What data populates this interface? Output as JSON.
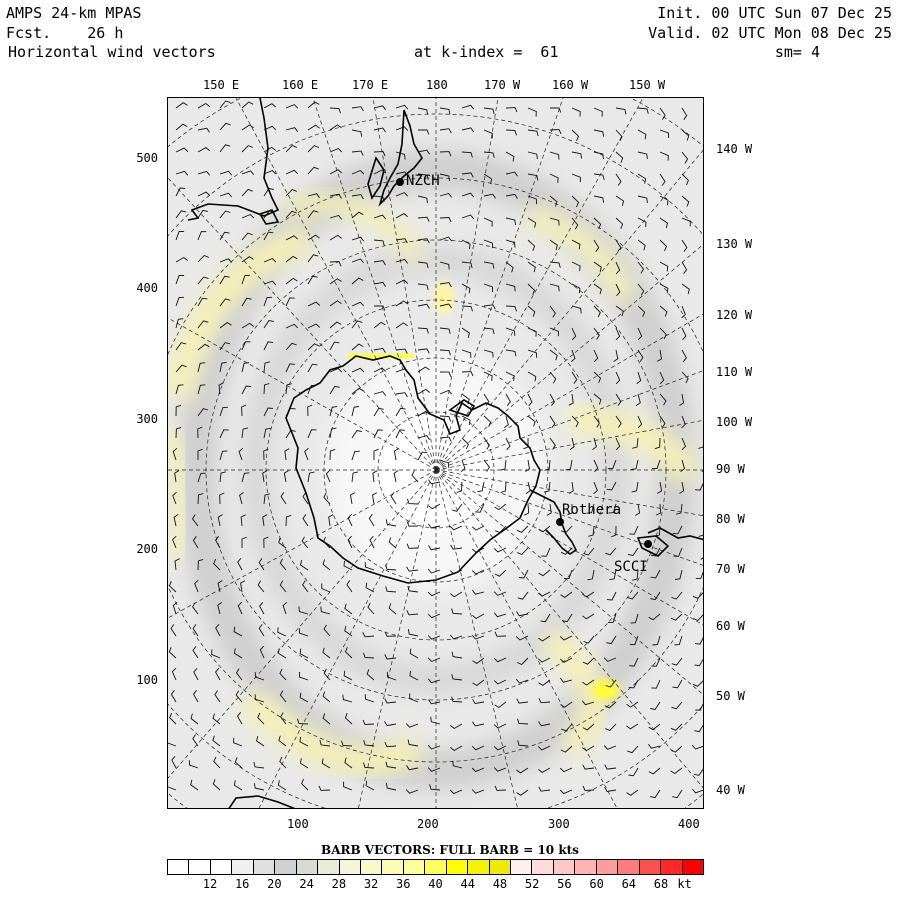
{
  "header": {
    "model": "AMPS 24-km MPAS",
    "forecast": "Fcst.    26 h",
    "field": "Horizontal wind vectors",
    "level": "at k-index =  61",
    "init": "Init. 00 UTC Sun 07 Dec 25",
    "valid": "Valid. 02 UTC Mon 08 Dec 25",
    "smoothing": "sm= 4"
  },
  "top_longitudes": [
    "150 E",
    "160 E",
    "170 E",
    "180",
    "170 W",
    "160 W",
    "150 W"
  ],
  "right_longitudes": [
    "140 W",
    "130 W",
    "120 W",
    "110 W",
    "100 W",
    "90 W",
    "80 W",
    "70 W",
    "60 W",
    "50 W",
    "40 W"
  ],
  "y_axis": [
    "500",
    "400",
    "300",
    "200",
    "100"
  ],
  "x_axis": [
    "100",
    "200",
    "300",
    "400"
  ],
  "stations": [
    "NZCH",
    "Rothera",
    "SCCI"
  ],
  "legend": {
    "title": "BARB VECTORS:  FULL BARB = 10 kts",
    "labels": [
      "12",
      "16",
      "20",
      "24",
      "28",
      "32",
      "36",
      "40",
      "44",
      "48",
      "52",
      "56",
      "60",
      "64",
      "68",
      "kt"
    ],
    "colors": [
      "#ffffff",
      "#ffffff",
      "#ffffff",
      "#f0f0f0",
      "#e0e0e0",
      "#d0d0d0",
      "#d6dcd0",
      "#e8ecd6",
      "#f4f4d8",
      "#fafac8",
      "#fcfcb4",
      "#ffff9c",
      "#ffff5c",
      "#ffff00",
      "#f6f200",
      "#eeea00",
      "#fff0f0",
      "#ffdcdc",
      "#ffc8c8",
      "#ffb4b4",
      "#ff9c9c",
      "#ff7c7c",
      "#ff5050",
      "#ff2828",
      "#ff0000"
    ]
  }
}
